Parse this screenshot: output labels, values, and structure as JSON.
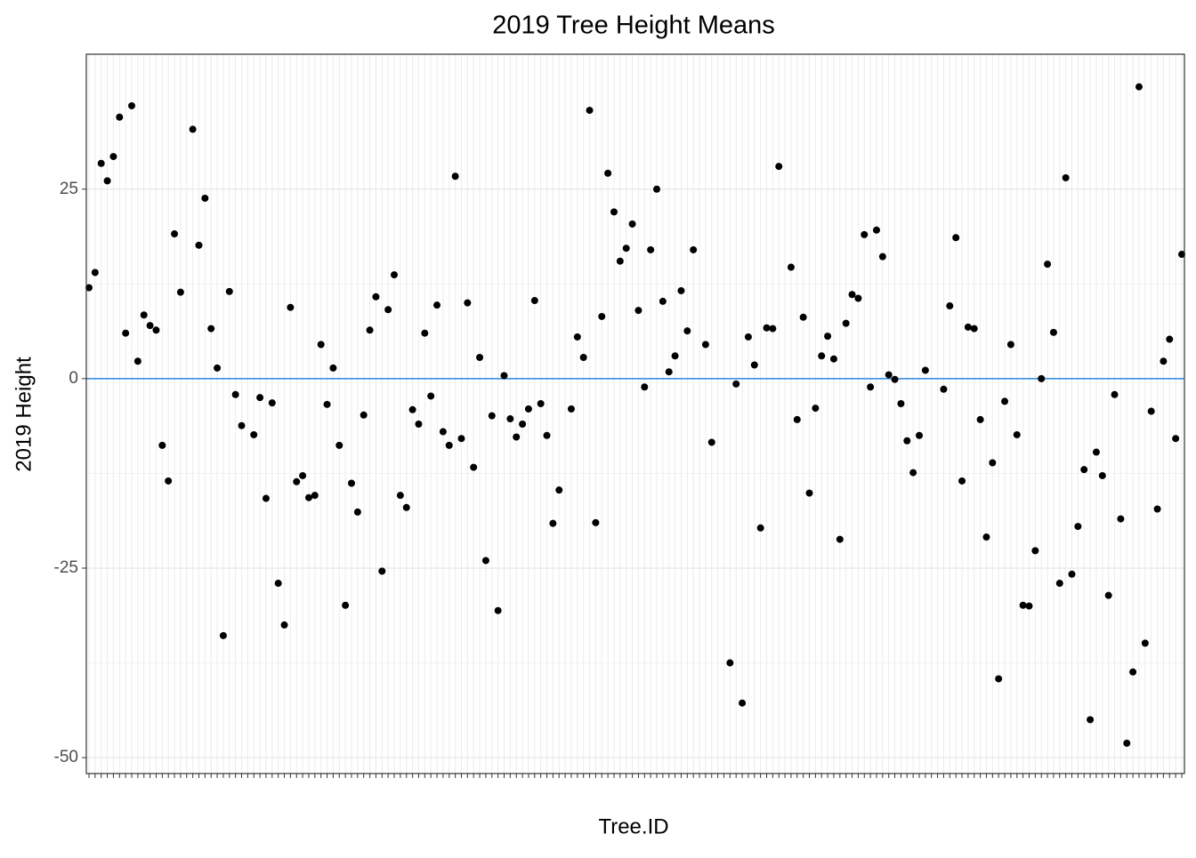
{
  "chart_data": {
    "type": "scatter",
    "title": "2019 Tree Height Means",
    "x_label": "Tree.ID",
    "y_label": "2019 Height",
    "categories": [
      null,
      null,
      null,
      null,
      null,
      null,
      null,
      null,
      null,
      null,
      null,
      null,
      null,
      null,
      null,
      null,
      null,
      null,
      null,
      null,
      null,
      null,
      null,
      null,
      null,
      null,
      null,
      null,
      null,
      null,
      null,
      null,
      null,
      null,
      null,
      null,
      null,
      null,
      null,
      null,
      null,
      null,
      null,
      null,
      null,
      null,
      null,
      null,
      null,
      null,
      null,
      null,
      null,
      null,
      null,
      null,
      null,
      null,
      null,
      null,
      null,
      null,
      null,
      null,
      null,
      null,
      null,
      null,
      null,
      null,
      null,
      null,
      null,
      null,
      null,
      null,
      null,
      null,
      null,
      null,
      null,
      null,
      null,
      null,
      null,
      null,
      null,
      null,
      null,
      null,
      null,
      null,
      null,
      null,
      null,
      null,
      null,
      null,
      null,
      null,
      null,
      null,
      null,
      null,
      null,
      null,
      null,
      null,
      null,
      null,
      null,
      null,
      null,
      null,
      null,
      null,
      null,
      null,
      null,
      null,
      null,
      null,
      null,
      null,
      null,
      null,
      null,
      null,
      null,
      null,
      null,
      null,
      null,
      null,
      null,
      null,
      null,
      null,
      null,
      null,
      null,
      null,
      null,
      null,
      null,
      null,
      null,
      null,
      null,
      null,
      null,
      null,
      null,
      null,
      null,
      null,
      null,
      null,
      null,
      null,
      null,
      null,
      null,
      null,
      null,
      null,
      null,
      null,
      null,
      null,
      null,
      null,
      null,
      null,
      null,
      null,
      null,
      null,
      null,
      null
    ],
    "values": [
      12.0,
      14.0,
      28.4,
      26.1,
      29.3,
      34.5,
      6.0,
      36.0,
      2.3,
      8.4,
      7.0,
      6.4,
      -8.8,
      -13.5,
      19.1,
      11.4,
      null,
      32.9,
      17.6,
      23.8,
      6.6,
      1.4,
      -33.9,
      11.5,
      -2.1,
      -6.2,
      null,
      -7.4,
      -2.5,
      -15.8,
      -3.2,
      -27.0,
      -32.5,
      9.4,
      -13.6,
      -12.8,
      -15.7,
      -15.4,
      4.5,
      -3.4,
      1.4,
      -8.8,
      -29.9,
      -13.8,
      -17.6,
      -4.8,
      6.4,
      10.8,
      -25.4,
      9.1,
      13.7,
      -15.4,
      -17.0,
      -4.1,
      -6.0,
      6.0,
      -2.3,
      9.7,
      -7.0,
      -8.8,
      26.7,
      -7.9,
      10.0,
      -11.7,
      2.8,
      -24.0,
      -4.9,
      -30.6,
      0.4,
      -5.3,
      -7.7,
      -6.0,
      -4.0,
      10.3,
      -3.3,
      -7.5,
      -19.1,
      -14.7,
      null,
      -4.0,
      5.5,
      2.8,
      35.4,
      -19.0,
      8.2,
      27.1,
      22.0,
      15.5,
      17.2,
      20.4,
      9.0,
      -1.1,
      17.0,
      25.0,
      10.2,
      0.9,
      3.0,
      11.6,
      6.3,
      17.0,
      null,
      4.5,
      -8.4,
      null,
      null,
      -37.5,
      -0.7,
      -42.8,
      5.5,
      1.8,
      -19.7,
      6.7,
      6.6,
      28.0,
      null,
      14.7,
      -5.4,
      8.1,
      -15.1,
      -3.9,
      3.0,
      5.6,
      2.6,
      -21.2,
      7.3,
      11.1,
      10.6,
      19.0,
      -1.1,
      19.6,
      16.1,
      0.5,
      -0.1,
      -3.3,
      -8.2,
      -12.4,
      -7.5,
      1.1,
      null,
      null,
      -1.4,
      9.6,
      18.6,
      -13.5,
      6.8,
      6.6,
      -5.4,
      -20.9,
      -11.1,
      -39.6,
      -3.0,
      4.5,
      -7.4,
      -29.9,
      -30.0,
      -22.7,
      0.0,
      15.1,
      6.1,
      -27.0,
      26.5,
      -25.8,
      -19.5,
      -12.0,
      -45.0,
      -9.7,
      -12.8,
      -28.6,
      -2.1,
      -18.5,
      -48.1,
      -38.7,
      38.5,
      -34.9,
      -4.3,
      -17.2,
      2.3,
      5.2,
      -7.9,
      16.4
    ],
    "color": "#000000",
    "ylim": [
      -52.1,
      42.8
    ],
    "yticks": [
      -50,
      -25,
      0,
      25
    ],
    "grid": true,
    "reference_line": {
      "value": 0,
      "color": "#2b8ce0"
    }
  }
}
